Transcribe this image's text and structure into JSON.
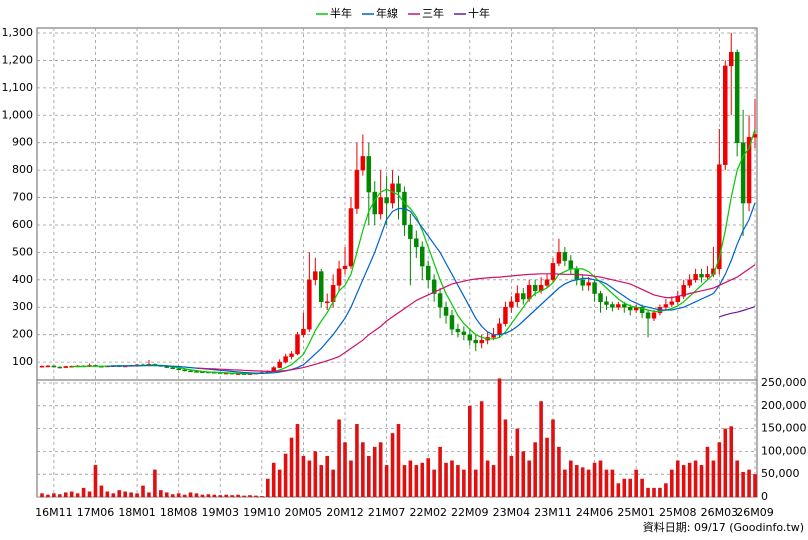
{
  "chart_data": {
    "type": "candlestick",
    "categories": [
      null,
      null,
      "16M11",
      null,
      null,
      null,
      null,
      null,
      null,
      "17M06",
      null,
      null,
      null,
      null,
      null,
      null,
      "18M01",
      null,
      null,
      null,
      null,
      null,
      null,
      "18M08",
      null,
      null,
      null,
      null,
      null,
      null,
      "19M03",
      null,
      null,
      null,
      null,
      null,
      null,
      "19M10",
      null,
      null,
      null,
      null,
      null,
      null,
      "20M05",
      null,
      null,
      null,
      null,
      null,
      null,
      "20M12",
      null,
      null,
      null,
      null,
      null,
      null,
      "21M07",
      null,
      null,
      null,
      null,
      null,
      null,
      "22M02",
      null,
      null,
      null,
      null,
      null,
      null,
      "22M09",
      null,
      null,
      null,
      null,
      null,
      null,
      "23M04",
      null,
      null,
      null,
      null,
      null,
      null,
      "23M11",
      null,
      null,
      null,
      null,
      null,
      null,
      "24M06",
      null,
      null,
      null,
      null,
      null,
      null,
      "25M01",
      null,
      null,
      null,
      null,
      null,
      null,
      "25M08",
      null,
      null,
      null,
      null,
      null,
      null,
      "26M03",
      null,
      null,
      null,
      null,
      null,
      "26M09"
    ],
    "open": [
      84,
      85,
      86,
      82,
      80,
      84,
      85,
      86,
      84,
      88,
      85,
      84,
      86,
      87,
      85,
      86,
      88,
      90,
      89,
      92,
      88,
      85,
      80,
      76,
      72,
      68,
      66,
      65,
      64,
      63,
      62,
      60,
      60,
      58,
      58,
      57,
      58,
      60,
      62,
      66,
      80,
      100,
      120,
      130,
      200,
      220,
      400,
      430,
      320,
      320,
      380,
      440,
      450,
      660,
      800,
      850,
      720,
      640,
      700,
      680,
      750,
      720,
      600,
      550,
      520,
      450,
      400,
      350,
      300,
      270,
      220,
      210,
      200,
      180,
      170,
      180,
      190,
      200,
      240,
      300,
      320,
      350,
      330,
      380,
      360,
      380,
      400,
      460,
      500,
      470,
      440,
      400,
      380,
      390,
      350,
      320,
      310,
      300,
      310,
      300,
      290,
      300,
      280,
      260,
      280,
      300,
      310,
      320,
      340,
      380,
      400,
      420,
      410,
      420,
      440,
      820,
      1180,
      1230,
      900,
      680,
      920
    ],
    "high": [
      88,
      89,
      88,
      84,
      86,
      87,
      89,
      88,
      95,
      90,
      87,
      88,
      89,
      89,
      88,
      90,
      93,
      95,
      108,
      95,
      90,
      87,
      82,
      78,
      74,
      70,
      68,
      67,
      66,
      65,
      64,
      62,
      62,
      60,
      60,
      60,
      62,
      65,
      70,
      85,
      110,
      130,
      140,
      210,
      280,
      500,
      480,
      440,
      350,
      420,
      470,
      520,
      700,
      900,
      930,
      900,
      760,
      800,
      780,
      800,
      780,
      740,
      640,
      580,
      540,
      470,
      420,
      370,
      320,
      290,
      240,
      230,
      220,
      200,
      200,
      210,
      225,
      260,
      320,
      340,
      380,
      370,
      400,
      400,
      410,
      420,
      480,
      550,
      520,
      490,
      450,
      420,
      410,
      400,
      360,
      340,
      320,
      320,
      320,
      310,
      310,
      310,
      290,
      290,
      310,
      330,
      340,
      360,
      400,
      420,
      440,
      440,
      450,
      520,
      950,
      1200,
      1300,
      1240,
      1020,
      1000,
      1060
    ],
    "low": [
      82,
      83,
      80,
      77,
      78,
      82,
      83,
      82,
      82,
      83,
      82,
      82,
      84,
      83,
      83,
      84,
      86,
      87,
      87,
      86,
      83,
      78,
      74,
      70,
      66,
      64,
      63,
      62,
      61,
      60,
      58,
      58,
      56,
      56,
      55,
      55,
      56,
      58,
      60,
      64,
      78,
      95,
      110,
      125,
      190,
      210,
      380,
      300,
      290,
      300,
      360,
      420,
      440,
      640,
      780,
      600,
      600,
      620,
      600,
      660,
      620,
      560,
      380,
      480,
      400,
      370,
      320,
      260,
      240,
      200,
      190,
      180,
      160,
      140,
      150,
      165,
      180,
      190,
      230,
      280,
      300,
      310,
      320,
      340,
      350,
      370,
      390,
      450,
      450,
      420,
      380,
      360,
      360,
      320,
      280,
      290,
      285,
      290,
      280,
      270,
      280,
      260,
      190,
      250,
      270,
      290,
      300,
      310,
      330,
      370,
      390,
      390,
      400,
      410,
      420,
      800,
      1000,
      850,
      560,
      650,
      880
    ],
    "close": [
      85,
      86,
      82,
      80,
      84,
      85,
      86,
      84,
      88,
      85,
      84,
      86,
      87,
      85,
      86,
      88,
      90,
      89,
      92,
      88,
      85,
      80,
      76,
      72,
      68,
      66,
      65,
      64,
      63,
      62,
      60,
      60,
      58,
      58,
      57,
      58,
      60,
      62,
      66,
      80,
      100,
      120,
      130,
      200,
      220,
      400,
      430,
      320,
      320,
      380,
      440,
      450,
      660,
      800,
      850,
      720,
      640,
      700,
      680,
      750,
      720,
      600,
      550,
      520,
      450,
      400,
      350,
      300,
      270,
      220,
      210,
      200,
      180,
      170,
      180,
      190,
      200,
      240,
      300,
      320,
      350,
      330,
      380,
      360,
      380,
      400,
      460,
      500,
      470,
      440,
      400,
      380,
      390,
      350,
      320,
      310,
      300,
      310,
      300,
      290,
      300,
      280,
      260,
      280,
      300,
      310,
      320,
      340,
      380,
      400,
      420,
      410,
      420,
      440,
      820,
      1180,
      1230,
      900,
      680,
      920,
      930
    ],
    "up_color": "#ee0000",
    "down_color": "#008800",
    "volume": [
      8000,
      5000,
      8000,
      6000,
      10000,
      12000,
      8000,
      20000,
      12000,
      70000,
      25000,
      12000,
      8000,
      15000,
      12000,
      10000,
      8000,
      25000,
      10000,
      60000,
      15000,
      10000,
      6000,
      8000,
      5000,
      10000,
      8000,
      5000,
      6000,
      5000,
      4000,
      5000,
      4000,
      5000,
      3000,
      4000,
      3000,
      2000,
      40000,
      75000,
      60000,
      95000,
      130000,
      160000,
      90000,
      80000,
      100000,
      70000,
      90000,
      60000,
      170000,
      120000,
      80000,
      160000,
      120000,
      90000,
      110000,
      120000,
      70000,
      140000,
      160000,
      70000,
      80000,
      70000,
      75000,
      85000,
      60000,
      110000,
      75000,
      80000,
      70000,
      60000,
      200000,
      60000,
      210000,
      80000,
      70000,
      260000,
      170000,
      90000,
      150000,
      100000,
      80000,
      120000,
      210000,
      130000,
      170000,
      110000,
      60000,
      80000,
      70000,
      65000,
      60000,
      75000,
      80000,
      60000,
      60000,
      30000,
      40000,
      40000,
      60000,
      40000,
      20000,
      20000,
      20000,
      30000,
      60000,
      80000,
      70000,
      75000,
      80000,
      70000,
      110000,
      80000,
      120000,
      150000,
      155000,
      80000,
      55000,
      60000,
      50000
    ],
    "volume_color": "#e01010",
    "volume_axis": "y2",
    "series": [
      {
        "name": "半年",
        "color": "#00cc00",
        "values": [
          null,
          null,
          null,
          null,
          null,
          84,
          84,
          84,
          85,
          85,
          85,
          85,
          86,
          86,
          86,
          87,
          87,
          88,
          89,
          89,
          88,
          86,
          83,
          80,
          76,
          72,
          69,
          66,
          64,
          63,
          62,
          61,
          60,
          59,
          58,
          58,
          58,
          59,
          61,
          65,
          71,
          80,
          91,
          109,
          128,
          170,
          215,
          250,
          280,
          320,
          360,
          380,
          420,
          500,
          580,
          650,
          690,
          720,
          730,
          720,
          710,
          680,
          660,
          630,
          580,
          520,
          460,
          400,
          350,
          310,
          270,
          240,
          220,
          200,
          190,
          185,
          185,
          190,
          210,
          240,
          270,
          300,
          330,
          350,
          360,
          370,
          390,
          420,
          430,
          440,
          440,
          440,
          430,
          410,
          390,
          370,
          350,
          330,
          315,
          305,
          300,
          295,
          290,
          285,
          285,
          290,
          295,
          305,
          320,
          340,
          360,
          380,
          400,
          420,
          480,
          580,
          700,
          800,
          850,
          880,
          950
        ]
      },
      {
        "name": "年線",
        "color": "#0060d0",
        "values": [
          null,
          null,
          null,
          null,
          null,
          null,
          null,
          null,
          null,
          null,
          null,
          85,
          85,
          86,
          86,
          86,
          86,
          87,
          87,
          87,
          87,
          86,
          85,
          84,
          82,
          80,
          78,
          76,
          74,
          72,
          70,
          68,
          66,
          64,
          62,
          61,
          60,
          59,
          60,
          61,
          64,
          68,
          73,
          80,
          90,
          110,
          130,
          150,
          175,
          200,
          230,
          260,
          300,
          350,
          400,
          450,
          500,
          560,
          620,
          650,
          660,
          660,
          650,
          620,
          590,
          560,
          530,
          500,
          460,
          420,
          380,
          340,
          300,
          260,
          230,
          210,
          200,
          200,
          205,
          215,
          230,
          250,
          270,
          290,
          310,
          330,
          350,
          370,
          385,
          395,
          400,
          405,
          405,
          400,
          395,
          385,
          370,
          355,
          340,
          325,
          315,
          305,
          300,
          295,
          290,
          290,
          290,
          295,
          300,
          310,
          320,
          330,
          340,
          350,
          380,
          420,
          470,
          530,
          580,
          620,
          680
        ]
      },
      {
        "name": "三年",
        "color": "#d0106a",
        "values": [
          null,
          null,
          null,
          null,
          null,
          null,
          null,
          null,
          null,
          null,
          null,
          null,
          null,
          null,
          null,
          null,
          null,
          null,
          null,
          null,
          null,
          null,
          null,
          null,
          null,
          null,
          78,
          77,
          76,
          75,
          74,
          73,
          72,
          71,
          70,
          69,
          68,
          67,
          66,
          66,
          67,
          69,
          72,
          76,
          80,
          86,
          92,
          98,
          105,
          112,
          120,
          135,
          150,
          165,
          180,
          200,
          215,
          230,
          250,
          265,
          280,
          295,
          310,
          325,
          335,
          345,
          355,
          365,
          375,
          385,
          390,
          395,
          400,
          403,
          405,
          407,
          409,
          410,
          412,
          414,
          416,
          418,
          420,
          421,
          422,
          422,
          422,
          421,
          420,
          420,
          419,
          418,
          416,
          413,
          410,
          405,
          400,
          395,
          390,
          385,
          375,
          365,
          355,
          345,
          340,
          335,
          335,
          340,
          345,
          350,
          355,
          360,
          365,
          370,
          380,
          390,
          400,
          410,
          425,
          440,
          455
        ]
      },
      {
        "name": "十年",
        "color": "#6a1a9a",
        "values": [
          null,
          null,
          null,
          null,
          null,
          null,
          null,
          null,
          null,
          null,
          null,
          null,
          null,
          null,
          null,
          null,
          null,
          null,
          null,
          null,
          null,
          null,
          null,
          null,
          null,
          null,
          null,
          null,
          null,
          null,
          null,
          null,
          null,
          null,
          null,
          null,
          null,
          null,
          null,
          null,
          null,
          null,
          null,
          null,
          null,
          null,
          null,
          null,
          null,
          null,
          null,
          null,
          null,
          null,
          null,
          null,
          null,
          null,
          null,
          null,
          null,
          null,
          null,
          null,
          null,
          null,
          null,
          null,
          null,
          null,
          null,
          null,
          null,
          null,
          null,
          null,
          null,
          null,
          null,
          null,
          null,
          null,
          null,
          null,
          null,
          null,
          null,
          null,
          null,
          null,
          null,
          null,
          null,
          null,
          null,
          null,
          null,
          null,
          null,
          null,
          null,
          null,
          null,
          null,
          null,
          null,
          null,
          null,
          null,
          null,
          null,
          null,
          null,
          null,
          265,
          272,
          278,
          282,
          288,
          295,
          302
        ]
      }
    ],
    "ylim": [
      42,
      1300
    ],
    "yticks": [
      100,
      200,
      300,
      400,
      500,
      600,
      700,
      800,
      900,
      {
        "value": 1000,
        "label": "1,000"
      },
      {
        "value": 1100,
        "label": "1,100"
      },
      {
        "value": 1200,
        "label": "1,200"
      },
      {
        "value": 1300,
        "label": "1,300"
      }
    ],
    "y2lim": [
      0,
      250000
    ],
    "y2ticks": [
      0,
      {
        "value": 50000,
        "label": "50,000"
      },
      {
        "value": 100000,
        "label": "100,000"
      },
      {
        "value": 150000,
        "label": "150,000"
      },
      {
        "value": 200000,
        "label": "200,000"
      },
      {
        "value": 250000,
        "label": "250,000"
      }
    ],
    "grid": true,
    "annotation": "資料日期: 09/17 (Goodinfo.tw)"
  }
}
